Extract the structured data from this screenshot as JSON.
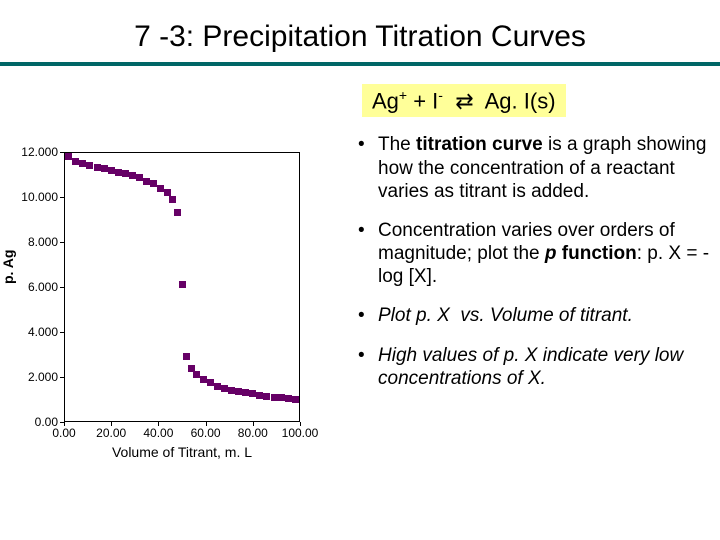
{
  "title": "7 -3: Precipitation Titration Curves",
  "underline_color": "#006666",
  "equation": {
    "html": "Ag<sup>+</sup> + I<sup>-</sup> &nbsp;⇄&nbsp; Ag. I(s)",
    "background": "#ffff99"
  },
  "bullets": [
    {
      "pre": "The ",
      "bold": "titration curve",
      "post": " is a graph showing how the concentration of a reactant varies as titrant is added."
    },
    {
      "text_html": "Concentration varies over orders of magnitude; plot the <span class='bold-italic'>p</span> <span class='bold'>function</span>: p. X = -log [X]."
    },
    {
      "text_html": "<span class='italic'>Plot p. X&nbsp; vs. Volume of titrant.</span>"
    },
    {
      "text_html": "<span class='italic'>High values of p. X indicate very low concentrations of X.</span>"
    }
  ],
  "chart": {
    "type": "scatter",
    "ylabel": "p. Ag",
    "xlabel": "Volume of Titrant, m. L",
    "xlim": [
      0,
      100
    ],
    "ylim": [
      0,
      12
    ],
    "ytick_step": 2.0,
    "xtick_step": 20.0,
    "marker_color": "#660066",
    "marker_size": 7,
    "background_color": "#ffffff",
    "yticks": [
      "0.00",
      "2.000",
      "4.000",
      "6.000",
      "8.000",
      "10.000",
      "12.000"
    ],
    "xticks": [
      "0.00",
      "20.00",
      "40.00",
      "60.00",
      "80.00",
      "100.00"
    ],
    "points": [
      [
        2,
        11.8
      ],
      [
        5,
        11.6
      ],
      [
        8,
        11.5
      ],
      [
        11,
        11.4
      ],
      [
        14,
        11.3
      ],
      [
        17,
        11.25
      ],
      [
        20,
        11.2
      ],
      [
        23,
        11.1
      ],
      [
        26,
        11.05
      ],
      [
        29,
        10.95
      ],
      [
        32,
        10.85
      ],
      [
        35,
        10.7
      ],
      [
        38,
        10.6
      ],
      [
        41,
        10.4
      ],
      [
        44,
        10.2
      ],
      [
        46,
        9.9
      ],
      [
        48,
        9.3
      ],
      [
        50,
        6.1
      ],
      [
        52,
        2.9
      ],
      [
        54,
        2.4
      ],
      [
        56,
        2.1
      ],
      [
        59,
        1.9
      ],
      [
        62,
        1.75
      ],
      [
        65,
        1.6
      ],
      [
        68,
        1.5
      ],
      [
        71,
        1.4
      ],
      [
        74,
        1.35
      ],
      [
        77,
        1.3
      ],
      [
        80,
        1.25
      ],
      [
        83,
        1.2
      ],
      [
        86,
        1.15
      ],
      [
        89,
        1.1
      ],
      [
        92,
        1.08
      ],
      [
        95,
        1.05
      ],
      [
        98,
        1.02
      ]
    ]
  }
}
